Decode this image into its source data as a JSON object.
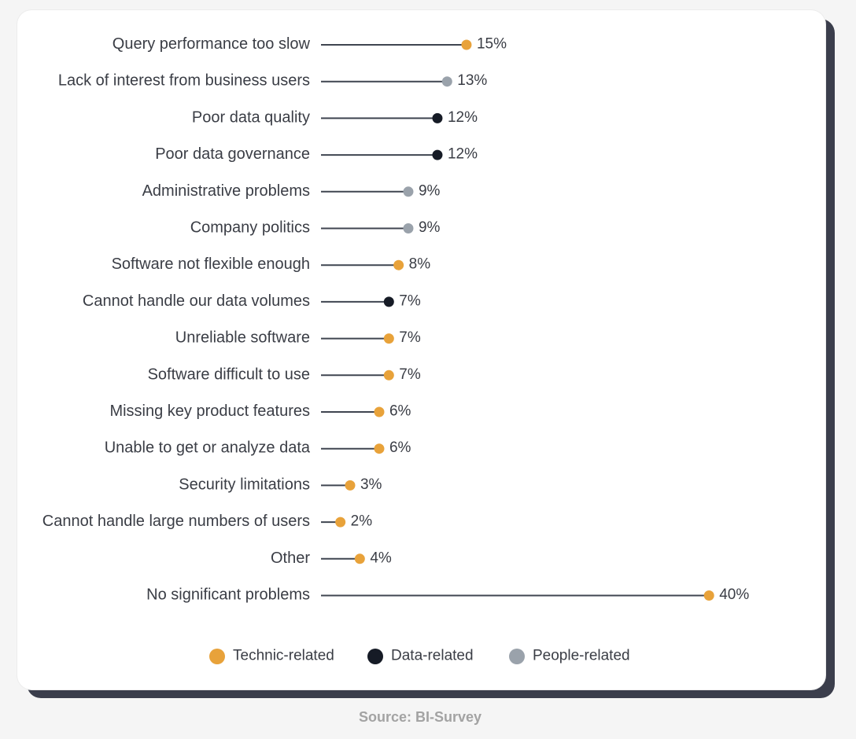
{
  "chart_data": {
    "type": "lollipop",
    "categories": [
      "Query performance too slow",
      "Lack of interest from business users",
      "Poor data quality",
      "Poor data governance",
      "Administrative problems",
      "Company politics",
      "Software not flexible enough",
      "Cannot handle our data volumes",
      "Unreliable software",
      "Software difficult to use",
      "Missing key product features",
      "Unable to get or analyze data",
      "Security limitations",
      "Cannot handle large numbers of users",
      "Other",
      "No significant problems"
    ],
    "values": [
      15,
      13,
      12,
      12,
      9,
      9,
      8,
      7,
      7,
      7,
      6,
      6,
      3,
      2,
      4,
      40
    ],
    "value_labels": [
      "15%",
      "13%",
      "12%",
      "12%",
      "9%",
      "9%",
      "8%",
      "7%",
      "7%",
      "7%",
      "6%",
      "6%",
      "3%",
      "2%",
      "4%",
      "40%"
    ],
    "groups": [
      "technic",
      "people",
      "data",
      "data",
      "people",
      "people",
      "technic",
      "data",
      "technic",
      "technic",
      "technic",
      "technic",
      "technic",
      "technic",
      "technic",
      "technic"
    ],
    "legend": [
      {
        "key": "technic",
        "label": "Technic-related",
        "color": "#e8a23a"
      },
      {
        "key": "data",
        "label": "Data-related",
        "color": "#161b26"
      },
      {
        "key": "people",
        "label": "People-related",
        "color": "#9aa2ab"
      }
    ],
    "stem_color": "#3f4550",
    "xlim": [
      0,
      40
    ],
    "grid": false,
    "legend_position": "bottom"
  },
  "source": "Source: BI-Survey"
}
